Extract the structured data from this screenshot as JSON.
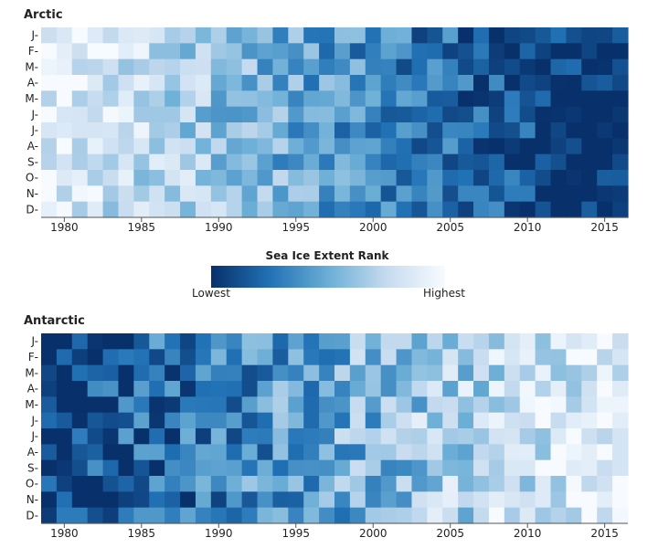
{
  "legend": {
    "title": "Sea Ice Extent Rank",
    "low_label": "Lowest",
    "high_label": "Highest",
    "colors": [
      "#08306b",
      "#2171b5",
      "#6baed6",
      "#c6dbef",
      "#f7fbff"
    ]
  },
  "chart_data": [
    {
      "type": "heatmap",
      "title": "Arctic",
      "months": [
        "J",
        "F",
        "M",
        "A",
        "M",
        "J",
        "J",
        "A",
        "S",
        "O",
        "N",
        "D"
      ],
      "x_start": 1979,
      "x_end": 2016,
      "year_ticks": [
        "1980",
        "1985",
        "1990",
        "1995",
        "2000",
        "2005",
        "2010",
        "2015"
      ],
      "value_meaning": "rank from 1 (lowest extent) to 38 (highest extent)",
      "trend": "declining",
      "seed": 7
    },
    {
      "type": "heatmap",
      "title": "Antarctic",
      "months": [
        "J",
        "F",
        "M",
        "A",
        "M",
        "J",
        "J",
        "A",
        "S",
        "O",
        "N",
        "D"
      ],
      "x_start": 1979,
      "x_end": 2016,
      "year_ticks": [
        "1980",
        "1985",
        "1990",
        "1995",
        "2000",
        "2005",
        "2010",
        "2015"
      ],
      "value_meaning": "rank from 1 (lowest extent) to 38 (highest extent)",
      "trend": "increasing",
      "seed": 23
    }
  ]
}
